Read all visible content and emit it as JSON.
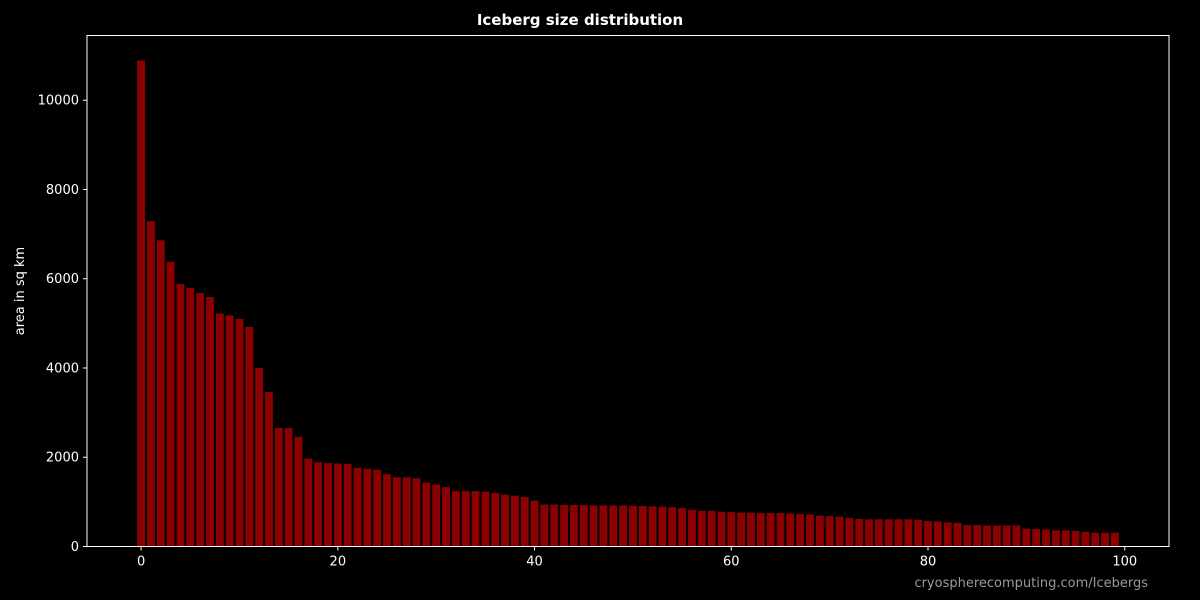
{
  "chart_data": {
    "type": "bar",
    "title": "Iceberg size distribution",
    "xlabel": "",
    "ylabel": "area in sq km",
    "xlim": [
      -5.5,
      104.5
    ],
    "ylim": [
      0,
      11450
    ],
    "xticks": [
      0,
      20,
      40,
      60,
      80,
      100
    ],
    "yticks": [
      0,
      2000,
      4000,
      6000,
      8000,
      10000
    ],
    "grid": false,
    "bar_color": "#8b0000",
    "background": "#000000",
    "credit": "cryospherecomputing.com/Icebergs",
    "x": [
      0,
      1,
      2,
      3,
      4,
      5,
      6,
      7,
      8,
      9,
      10,
      11,
      12,
      13,
      14,
      15,
      16,
      17,
      18,
      19,
      20,
      21,
      22,
      23,
      24,
      25,
      26,
      27,
      28,
      29,
      30,
      31,
      32,
      33,
      34,
      35,
      36,
      37,
      38,
      39,
      40,
      41,
      42,
      43,
      44,
      45,
      46,
      47,
      48,
      49,
      50,
      51,
      52,
      53,
      54,
      55,
      56,
      57,
      58,
      59,
      60,
      61,
      62,
      63,
      64,
      65,
      66,
      67,
      68,
      69,
      70,
      71,
      72,
      73,
      74,
      75,
      76,
      77,
      78,
      79,
      80,
      81,
      82,
      83,
      84,
      85,
      86,
      87,
      88,
      89,
      90,
      91,
      92,
      93,
      94,
      95,
      96,
      97,
      98,
      99
    ],
    "values": [
      10890,
      7290,
      6860,
      6380,
      5880,
      5790,
      5680,
      5590,
      5220,
      5180,
      5100,
      4920,
      4000,
      3460,
      2660,
      2650,
      2460,
      1970,
      1890,
      1870,
      1860,
      1850,
      1760,
      1740,
      1720,
      1620,
      1550,
      1550,
      1530,
      1430,
      1390,
      1330,
      1240,
      1240,
      1240,
      1230,
      1200,
      1160,
      1140,
      1110,
      1030,
      940,
      940,
      930,
      930,
      930,
      920,
      920,
      920,
      920,
      910,
      910,
      900,
      890,
      880,
      860,
      820,
      800,
      800,
      780,
      770,
      760,
      760,
      750,
      750,
      750,
      740,
      730,
      720,
      690,
      680,
      670,
      640,
      620,
      610,
      610,
      610,
      610,
      610,
      600,
      570,
      560,
      540,
      530,
      480,
      480,
      470,
      470,
      470,
      470,
      400,
      390,
      380,
      360,
      360,
      350,
      330,
      310,
      310,
      310
    ]
  }
}
